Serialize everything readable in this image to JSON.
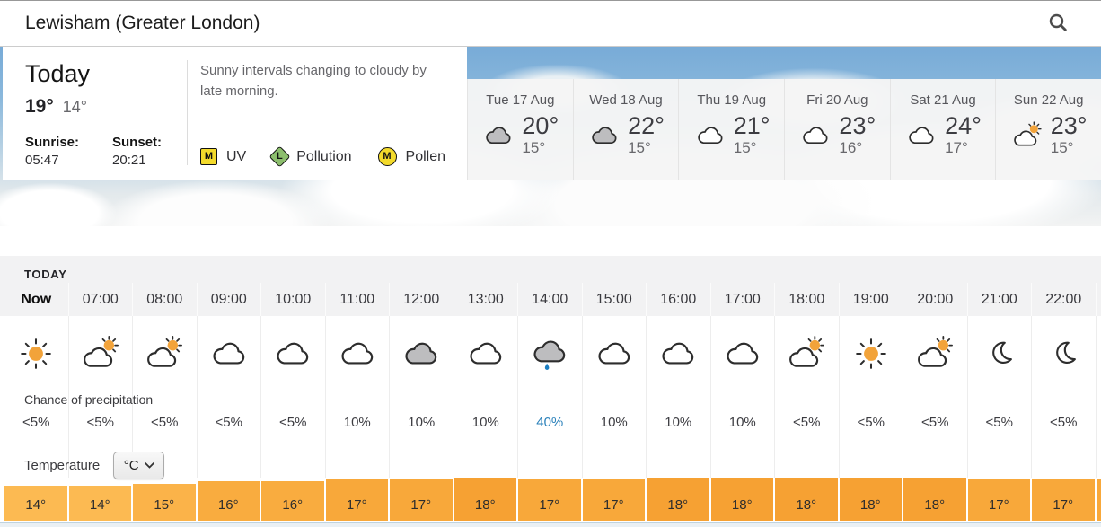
{
  "header": {
    "location": "Lewisham (Greater London)"
  },
  "today_panel": {
    "title": "Today",
    "high": "19°",
    "low": "14°",
    "sunrise_label": "Sunrise:",
    "sunrise": "05:47",
    "sunset_label": "Sunset:",
    "sunset": "20:21",
    "summary": "Sunny intervals changing to cloudy by late morning.",
    "badges": [
      {
        "label": "UV",
        "level": "M",
        "shape": "square",
        "color": "#f3da2b"
      },
      {
        "label": "Pollution",
        "level": "L",
        "shape": "diamond",
        "color": "#8cbe6d"
      },
      {
        "label": "Pollen",
        "level": "M",
        "shape": "circle",
        "color": "#f3da2b"
      }
    ]
  },
  "daily_forecast": [
    {
      "day": "Tue 17 Aug",
      "icon": "gray-cloud",
      "high": "20°",
      "low": "15°"
    },
    {
      "day": "Wed 18 Aug",
      "icon": "gray-cloud",
      "high": "22°",
      "low": "15°"
    },
    {
      "day": "Thu 19 Aug",
      "icon": "white-cloud",
      "high": "21°",
      "low": "15°"
    },
    {
      "day": "Fri 20 Aug",
      "icon": "white-cloud",
      "high": "23°",
      "low": "16°"
    },
    {
      "day": "Sat 21 Aug",
      "icon": "white-cloud",
      "high": "24°",
      "low": "17°"
    },
    {
      "day": "Sun 22 Aug",
      "icon": "sun-cloud",
      "high": "23°",
      "low": "15°"
    }
  ],
  "hourly": {
    "section_label": "TODAY",
    "precip_label": "Chance of precipitation",
    "temp_label": "Temperature",
    "unit": "°C",
    "columns": [
      {
        "time": "Now",
        "icon": "sun",
        "precip": "<5%",
        "temp": "14°",
        "temp_value": 14
      },
      {
        "time": "07:00",
        "icon": "sun-cloud",
        "precip": "<5%",
        "temp": "14°",
        "temp_value": 14
      },
      {
        "time": "08:00",
        "icon": "sun-cloud",
        "precip": "<5%",
        "temp": "15°",
        "temp_value": 15
      },
      {
        "time": "09:00",
        "icon": "white-cloud",
        "precip": "<5%",
        "temp": "16°",
        "temp_value": 16
      },
      {
        "time": "10:00",
        "icon": "white-cloud",
        "precip": "<5%",
        "temp": "16°",
        "temp_value": 16
      },
      {
        "time": "11:00",
        "icon": "white-cloud",
        "precip": "10%",
        "temp": "17°",
        "temp_value": 17
      },
      {
        "time": "12:00",
        "icon": "gray-cloud",
        "precip": "10%",
        "temp": "17°",
        "temp_value": 17
      },
      {
        "time": "13:00",
        "icon": "white-cloud",
        "precip": "10%",
        "temp": "18°",
        "temp_value": 18
      },
      {
        "time": "14:00",
        "icon": "rain-cloud",
        "precip": "40%",
        "precip_highlight": true,
        "temp": "17°",
        "temp_value": 17
      },
      {
        "time": "15:00",
        "icon": "white-cloud",
        "precip": "10%",
        "temp": "17°",
        "temp_value": 17
      },
      {
        "time": "16:00",
        "icon": "white-cloud",
        "precip": "10%",
        "temp": "18°",
        "temp_value": 18
      },
      {
        "time": "17:00",
        "icon": "white-cloud",
        "precip": "10%",
        "temp": "18°",
        "temp_value": 18
      },
      {
        "time": "18:00",
        "icon": "sun-cloud",
        "precip": "<5%",
        "temp": "18°",
        "temp_value": 18
      },
      {
        "time": "19:00",
        "icon": "sun",
        "precip": "<5%",
        "temp": "18°",
        "temp_value": 18
      },
      {
        "time": "20:00",
        "icon": "sun-cloud",
        "precip": "<5%",
        "temp": "18°",
        "temp_value": 18
      },
      {
        "time": "21:00",
        "icon": "moon",
        "precip": "<5%",
        "temp": "17°",
        "temp_value": 17
      },
      {
        "time": "22:00",
        "icon": "moon",
        "precip": "<5%",
        "temp": "17°",
        "temp_value": 17
      }
    ],
    "partial_next_column": {
      "temp_value": 17
    }
  },
  "colors": {
    "precip_highlight": "#2b81ba",
    "temp_bars": {
      "14": "#fcba52",
      "15": "#fbb349",
      "16": "#f9ac3f",
      "17": "#f8a83a",
      "18": "#f6a133"
    }
  }
}
